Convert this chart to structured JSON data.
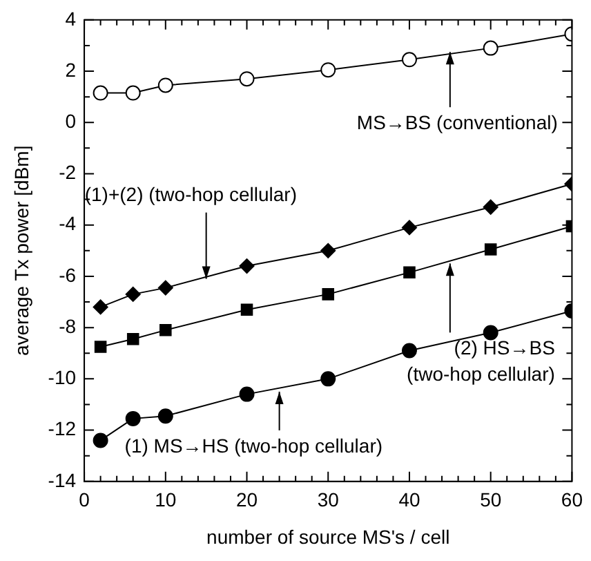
{
  "chart_data": {
    "type": "line",
    "xlabel": "number of source MS's / cell",
    "ylabel": "average Tx power [dBm]",
    "x": [
      2,
      6,
      10,
      20,
      30,
      40,
      50,
      60
    ],
    "series": [
      {
        "color": "#000000",
        "marker": "circle",
        "colors": [
          "#ffffff",
          "#ffffff",
          "#ffffff",
          "#ffffff",
          "#ffffff",
          "#ffffff",
          "#ffffff",
          "#ffffff"
        ],
        "values": [
          1.15,
          1.15,
          1.45,
          1.7,
          2.05,
          2.45,
          2.9,
          3.45
        ]
      },
      {
        "color": "#000000",
        "marker": "diamond",
        "values": [
          -7.2,
          -6.7,
          -6.45,
          -5.6,
          -5.0,
          -4.1,
          -3.3,
          -2.4
        ]
      },
      {
        "color": "#000000",
        "marker": "square",
        "values": [
          -8.75,
          -8.45,
          -8.1,
          -7.3,
          -6.7,
          -5.85,
          -4.95,
          -4.05
        ]
      },
      {
        "color": "#000000",
        "marker": "circle",
        "values": [
          -12.4,
          -11.55,
          -11.45,
          -10.6,
          -10.0,
          -8.9,
          -8.2,
          -7.35
        ]
      }
    ],
    "xlim": [
      0,
      60
    ],
    "xticks": [
      0,
      {
        "value": 2,
        "label": null
      },
      {
        "value": 4,
        "label": null
      },
      {
        "value": 6,
        "label": null
      },
      {
        "value": 8,
        "label": null
      },
      10,
      {
        "value": 12,
        "label": null
      },
      {
        "value": 14,
        "label": null
      },
      {
        "value": 16,
        "label": null
      },
      {
        "value": 18,
        "label": null
      },
      20,
      {
        "value": 22,
        "label": null
      },
      {
        "value": 24,
        "label": null
      },
      {
        "value": 26,
        "label": null
      },
      {
        "value": 28,
        "label": null
      },
      30,
      {
        "value": 32,
        "label": null
      },
      {
        "value": 34,
        "label": null
      },
      {
        "value": 36,
        "label": null
      },
      {
        "value": 38,
        "label": null
      },
      40,
      {
        "value": 42,
        "label": null
      },
      {
        "value": 44,
        "label": null
      },
      {
        "value": 46,
        "label": null
      },
      {
        "value": 48,
        "label": null
      },
      50,
      {
        "value": 52,
        "label": null
      },
      {
        "value": 54,
        "label": null
      },
      {
        "value": 56,
        "label": null
      },
      {
        "value": 58,
        "label": null
      },
      60
    ],
    "ylim": [
      -14,
      4
    ],
    "yticks": [
      -14,
      {
        "value": -13,
        "label": null
      },
      -12,
      {
        "value": -11,
        "label": null
      },
      -10,
      {
        "value": -9,
        "label": null
      },
      -8,
      {
        "value": -7,
        "label": null
      },
      -6,
      {
        "value": -5,
        "label": null
      },
      -4,
      {
        "value": -3,
        "label": null
      },
      -2,
      {
        "value": -1,
        "label": null
      },
      0,
      {
        "value": 1,
        "label": null
      },
      2,
      {
        "value": 3,
        "label": null
      },
      4
    ],
    "grid": false,
    "legend": false,
    "line_style": "solid",
    "annotations": [
      {
        "text": "MS→BS (conventional)",
        "x": 45,
        "y": 2.75
      },
      {
        "text": "(1)+(2) (two-hop cellular)",
        "x": 15,
        "y": -6.1
      },
      {
        "text": "(2) HS→BS\n(two-hop cellular)",
        "x": 45,
        "y": -5.5
      },
      {
        "text": "(1) MS→HS (two-hop cellular)",
        "x": 24,
        "y": -10.5
      }
    ]
  }
}
